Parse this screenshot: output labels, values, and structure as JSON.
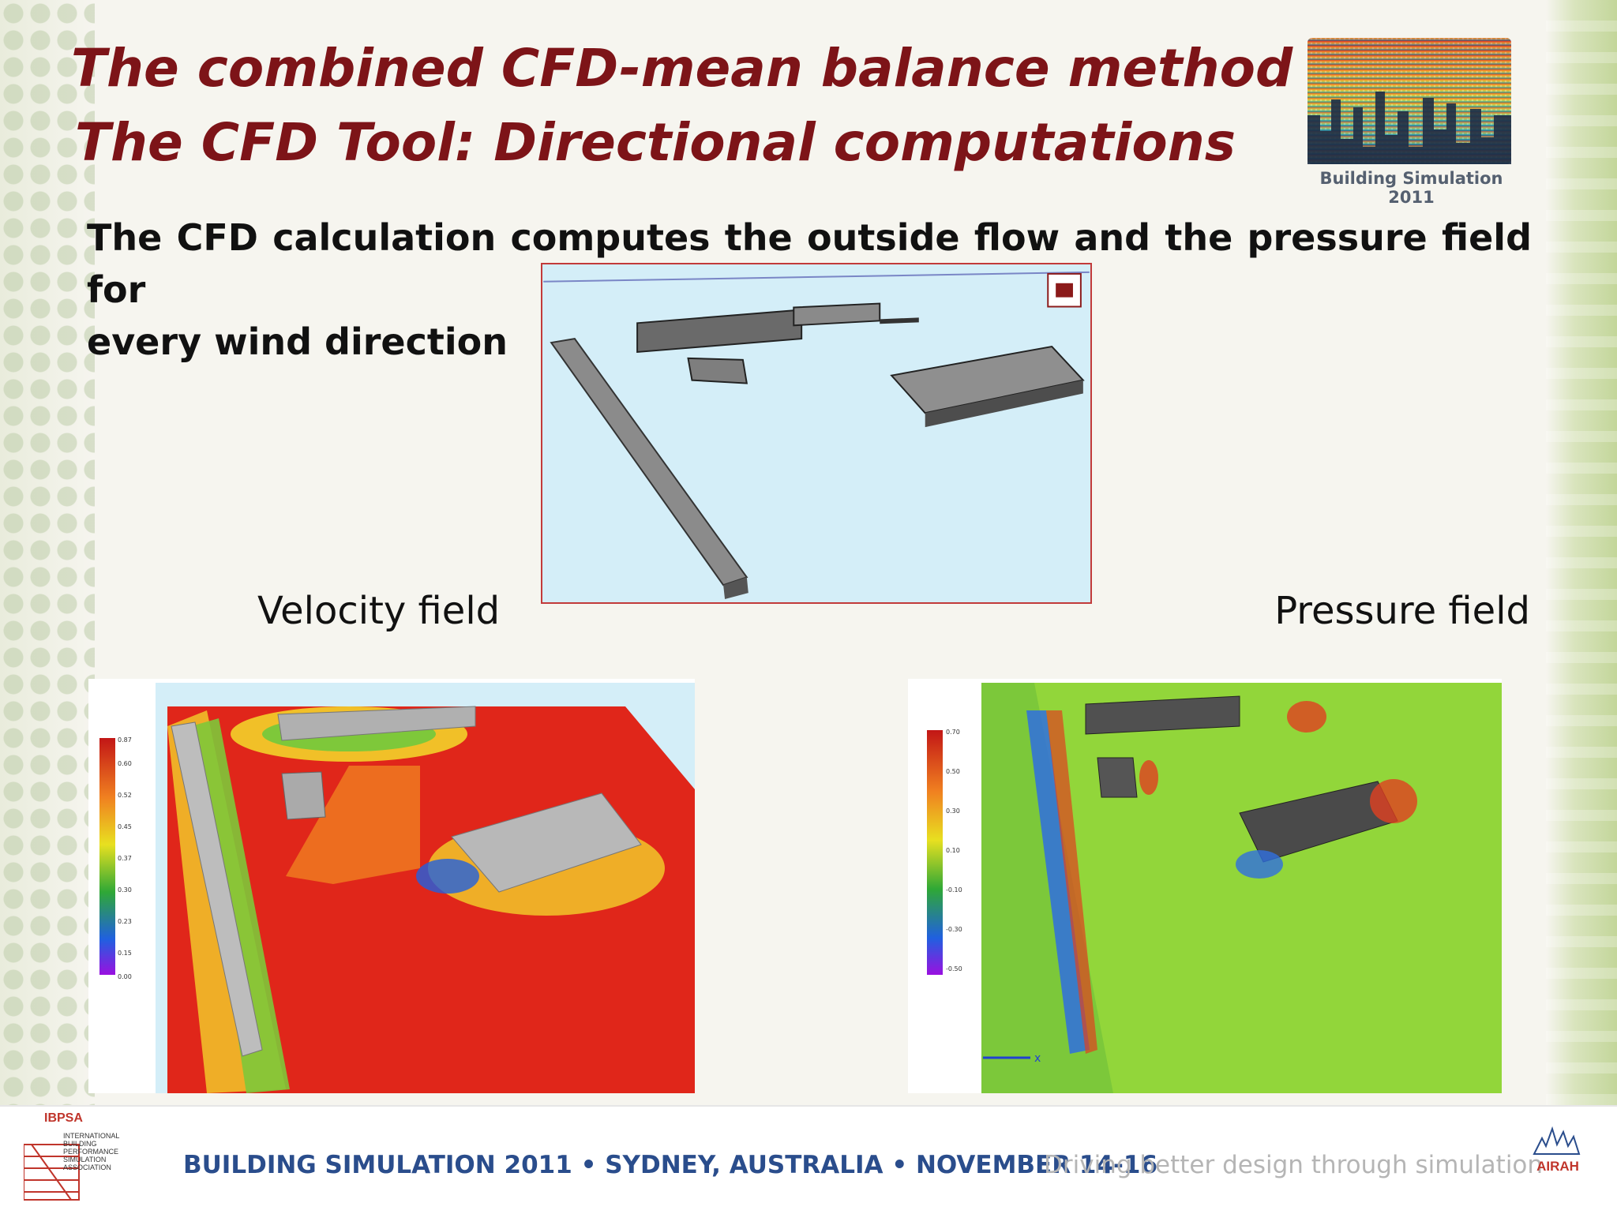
{
  "slide": {
    "title_line1": "The combined CFD-mean balance method",
    "title_line2": "The CFD Tool: Directional computations",
    "body_line1": "The CFD calculation computes the outside flow and the pressure field for",
    "body_line2": "every wind direction",
    "label_velocity": "Velocity field",
    "label_pressure": "Pressure field"
  },
  "logo": {
    "caption": "Building Simulation 2011"
  },
  "footer": {
    "ibpsa_title": "IBPSA",
    "ibpsa_text": "INTERNATIONAL\nBUILDING\nPERFORMANCE\nSIMULATION\nASSOCIATION",
    "main_text": "BUILDING SIMULATION 2011 • SYDNEY, AUSTRALIA • NOVEMBER 14-16",
    "tagline": "Driving better design through simulation",
    "airah": "AIRAH"
  },
  "colors": {
    "title": "#7d1418",
    "footer_blue": "#2a4d8c",
    "sky": "#d4eef8",
    "velocity_high": "#e0261a",
    "pressure_mid": "#8fdc3a"
  }
}
